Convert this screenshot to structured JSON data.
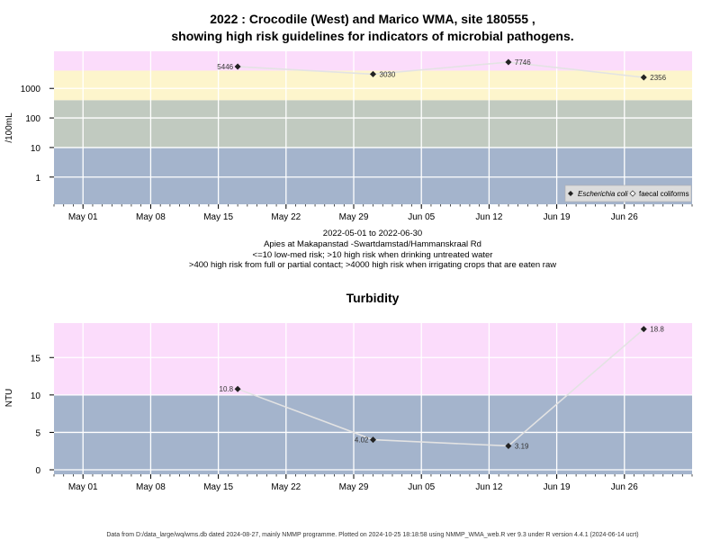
{
  "header": {
    "title_line1": "2022 : Crocodile (West) and Marico WMA, site 180555 ,",
    "title_line2": "showing high risk guidelines for indicators of microbial pathogens.",
    "date_range": "2022-05-01 to 2022-06-30",
    "site_name": "Apies at Makapanstad -Swartdamstad/Hammanskraal Rd",
    "guideline_1": "<=10 low-med risk; >10 high risk when drinking untreated water",
    "guideline_2": ">400 high risk from full or partial contact; >4000 high risk when irrigating crops that are eaten raw"
  },
  "colors": {
    "band_high": "#fbdcfb",
    "band_contact": "#fdf5cc",
    "band_drinking": "#c1cac0",
    "band_low": "#a4b4cc",
    "line": "#e3e3e3",
    "grid": "#ffffff"
  },
  "chart_data": [
    {
      "type": "line",
      "title": "",
      "ylabel": "/100mL",
      "y_scale": "log",
      "ylim": [
        0.12,
        18000
      ],
      "xlim": [
        "2022-04-28",
        "2022-07-03"
      ],
      "x_ticks": [
        "May 01",
        "May 08",
        "May 15",
        "May 22",
        "May 29",
        "Jun 05",
        "Jun 12",
        "Jun 19",
        "Jun 26"
      ],
      "y_ticks": [
        "1",
        "10",
        "100",
        "1000"
      ],
      "bands": [
        {
          "from": 0.12,
          "to": 10,
          "color": "#a4b4cc"
        },
        {
          "from": 10,
          "to": 400,
          "color": "#c1cac0"
        },
        {
          "from": 400,
          "to": 4000,
          "color": "#fdf5cc"
        },
        {
          "from": 4000,
          "to": 18000,
          "color": "#fbdcfb"
        }
      ],
      "legend_position": "bottom-right",
      "legend": [
        "Escherichia coli",
        "faecal coliforms"
      ],
      "series": [
        {
          "name": "Escherichia coli",
          "x": [
            "2022-05-17",
            "2022-05-31",
            "2022-06-14",
            "2022-06-28"
          ],
          "values": [
            5446,
            3030,
            7746,
            2356
          ],
          "labels": [
            "5446",
            "3030",
            "7746",
            "2356"
          ]
        }
      ]
    },
    {
      "type": "line",
      "title": "Turbidity",
      "ylabel": "NTU",
      "ylim": [
        -0.6,
        19.6
      ],
      "xlim": [
        "2022-04-28",
        "2022-07-03"
      ],
      "x_ticks": [
        "May 01",
        "May 08",
        "May 15",
        "May 22",
        "May 29",
        "Jun 05",
        "Jun 12",
        "Jun 19",
        "Jun 26"
      ],
      "y_ticks": [
        "0",
        "5",
        "10",
        "15"
      ],
      "bands": [
        {
          "from": -0.6,
          "to": 10,
          "color": "#a4b4cc"
        },
        {
          "from": 10,
          "to": 19.6,
          "color": "#fbdcfb"
        }
      ],
      "series": [
        {
          "name": "",
          "x": [
            "2022-05-17",
            "2022-05-31",
            "2022-06-14",
            "2022-06-28"
          ],
          "values": [
            10.8,
            4.02,
            3.19,
            18.8
          ],
          "labels": [
            "10.8",
            "4.02",
            "3.19",
            "18.8"
          ]
        }
      ]
    }
  ],
  "footer": "Data from D:/data_large/wq/wms.db dated 2024-08-27, mainly NMMP programme. Plotted on 2024-10-25 18:18:58 using NMMP_WMA_web.R ver 9.3 under R version 4.4.1 (2024-06-14 ucrt)"
}
